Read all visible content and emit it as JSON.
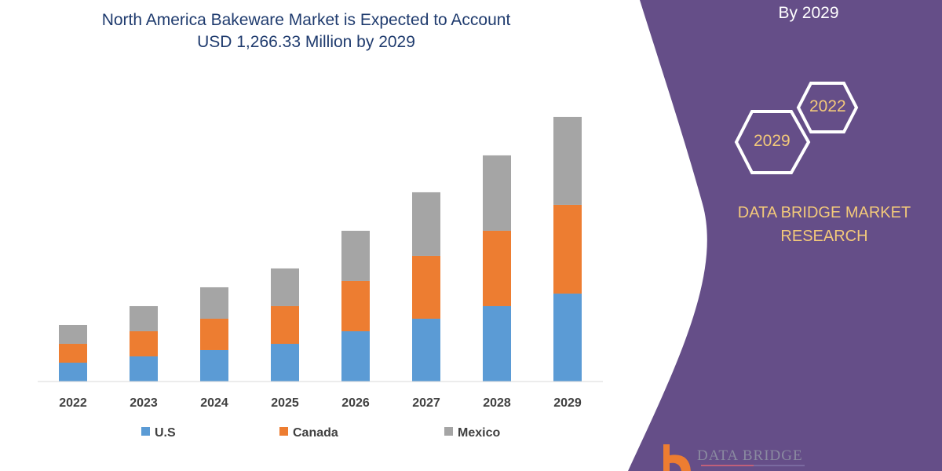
{
  "chart_data": {
    "type": "bar",
    "stacked": true,
    "title": "North America Bakeware Market is Expected to Account USD 1,266.33 Million by 2029",
    "title_lines": [
      "North America Bakeware Market is Expected to Account",
      "USD 1,266.33 Million by 2029"
    ],
    "categories": [
      "2022",
      "2023",
      "2024",
      "2025",
      "2026",
      "2027",
      "2028",
      "2029"
    ],
    "series": [
      {
        "name": "U.S",
        "color": "#5b9bd5",
        "values": [
          24,
          32,
          40,
          48,
          64,
          80,
          96,
          112
        ]
      },
      {
        "name": "Canada",
        "color": "#ed7d31",
        "values": [
          24,
          32,
          40,
          48,
          64,
          80,
          96,
          113
        ]
      },
      {
        "name": "Mexico",
        "color": "#a5a5a5",
        "values": [
          24,
          32,
          40,
          48,
          64,
          81,
          96,
          112
        ]
      }
    ],
    "ylim": [
      0,
      340
    ],
    "y_axis_shown": false,
    "grid": false,
    "legend_position": "bottom"
  },
  "side_panel": {
    "heading": "By 2029",
    "hex_years": [
      "2029",
      "2022"
    ],
    "brand_lines": [
      "DATA BRIDGE MARKET",
      "RESEARCH"
    ],
    "panel_color": "#654e88",
    "accent_color": "#f3c97a",
    "logo_text": "DATA BRIDGE"
  }
}
